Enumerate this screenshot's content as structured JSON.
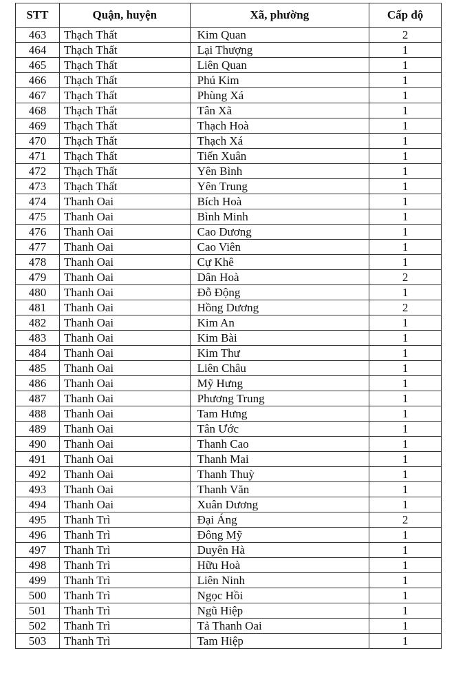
{
  "table": {
    "headers": [
      "STT",
      "Quận, huyện",
      "Xã, phường",
      "Cấp độ"
    ],
    "rows": [
      [
        "463",
        "Thạch Thất",
        "Kim Quan",
        "2"
      ],
      [
        "464",
        "Thạch Thất",
        "Lại Thượng",
        "1"
      ],
      [
        "465",
        "Thạch Thất",
        "Liên Quan",
        "1"
      ],
      [
        "466",
        "Thạch Thất",
        "Phú Kim",
        "1"
      ],
      [
        "467",
        "Thạch Thất",
        "Phùng Xá",
        "1"
      ],
      [
        "468",
        "Thạch Thất",
        "Tân Xã",
        "1"
      ],
      [
        "469",
        "Thạch Thất",
        "Thạch Hoà",
        "1"
      ],
      [
        "470",
        "Thạch Thất",
        "Thạch Xá",
        "1"
      ],
      [
        "471",
        "Thạch Thất",
        "Tiến Xuân",
        "1"
      ],
      [
        "472",
        "Thạch Thất",
        "Yên Bình",
        "1"
      ],
      [
        "473",
        "Thạch Thất",
        "Yên Trung",
        "1"
      ],
      [
        "474",
        "Thanh Oai",
        "Bích Hoà",
        "1"
      ],
      [
        "475",
        "Thanh Oai",
        "Bình Minh",
        "1"
      ],
      [
        "476",
        "Thanh Oai",
        "Cao Dương",
        "1"
      ],
      [
        "477",
        "Thanh Oai",
        "Cao Viên",
        "1"
      ],
      [
        "478",
        "Thanh Oai",
        "Cự Khê",
        "1"
      ],
      [
        "479",
        "Thanh Oai",
        "Dân Hoà",
        "2"
      ],
      [
        "480",
        "Thanh Oai",
        "Đỗ Động",
        "1"
      ],
      [
        "481",
        "Thanh Oai",
        "Hồng Dương",
        "2"
      ],
      [
        "482",
        "Thanh Oai",
        "Kim An",
        "1"
      ],
      [
        "483",
        "Thanh Oai",
        "Kim Bài",
        "1"
      ],
      [
        "484",
        "Thanh Oai",
        "Kim Thư",
        "1"
      ],
      [
        "485",
        "Thanh Oai",
        "Liên Châu",
        "1"
      ],
      [
        "486",
        "Thanh Oai",
        "Mỹ Hưng",
        "1"
      ],
      [
        "487",
        "Thanh Oai",
        "Phương Trung",
        "1"
      ],
      [
        "488",
        "Thanh Oai",
        "Tam Hưng",
        "1"
      ],
      [
        "489",
        "Thanh Oai",
        "Tân Ước",
        "1"
      ],
      [
        "490",
        "Thanh Oai",
        "Thanh Cao",
        "1"
      ],
      [
        "491",
        "Thanh Oai",
        "Thanh Mai",
        "1"
      ],
      [
        "492",
        "Thanh Oai",
        "Thanh Thuỳ",
        "1"
      ],
      [
        "493",
        "Thanh Oai",
        "Thanh Văn",
        "1"
      ],
      [
        "494",
        "Thanh Oai",
        "Xuân Dương",
        "1"
      ],
      [
        "495",
        "Thanh Trì",
        "Đại Áng",
        "2"
      ],
      [
        "496",
        "Thanh Trì",
        "Đông Mỹ",
        "1"
      ],
      [
        "497",
        "Thanh Trì",
        "Duyên Hà",
        "1"
      ],
      [
        "498",
        "Thanh Trì",
        "Hữu Hoà",
        "1"
      ],
      [
        "499",
        "Thanh Trì",
        "Liên Ninh",
        "1"
      ],
      [
        "500",
        "Thanh Trì",
        "Ngọc Hồi",
        "1"
      ],
      [
        "501",
        "Thanh Trì",
        "Ngũ Hiệp",
        "1"
      ],
      [
        "502",
        "Thanh Trì",
        "Tả Thanh Oai",
        "1"
      ],
      [
        "503",
        "Thanh Trì",
        "Tam Hiệp",
        "1"
      ]
    ]
  }
}
